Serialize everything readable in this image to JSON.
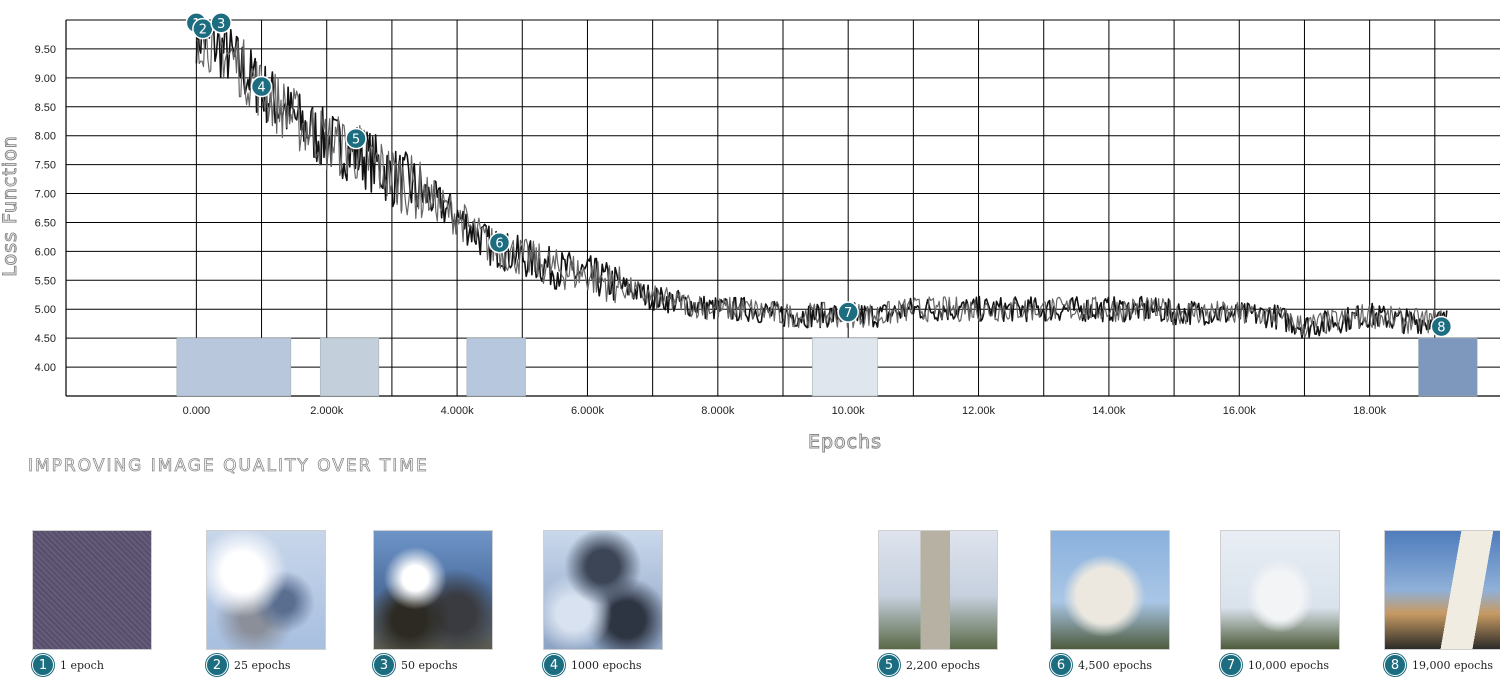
{
  "chart_data": {
    "type": "line",
    "xlabel": "Epochs",
    "ylabel": "Loss Function",
    "xlim": [
      -2000,
      20000
    ],
    "ylim": [
      3.5,
      10.0
    ],
    "y_ticks": [
      4.0,
      4.5,
      5.0,
      5.5,
      6.0,
      6.5,
      7.0,
      7.5,
      8.0,
      8.5,
      9.0,
      9.5
    ],
    "y_tick_labels": [
      "4.00",
      "4.50",
      "5.00",
      "5.50",
      "6.00",
      "6.50",
      "7.00",
      "7.50",
      "8.00",
      "8.50",
      "9.00",
      "9.50"
    ],
    "x_ticks": [
      0,
      2000,
      4000,
      6000,
      8000,
      10000,
      12000,
      14000,
      16000,
      18000
    ],
    "x_tick_labels": [
      "0.000",
      "2.000k",
      "4.000k",
      "6.000k",
      "8.000k",
      "10.00k",
      "12.00k",
      "14.00k",
      "16.00k",
      "18.00k"
    ],
    "grid": true,
    "series": [
      {
        "x": [
          0,
          500,
          1000,
          1500,
          2000,
          2500,
          3000,
          3500,
          4000,
          4500,
          5000,
          5500,
          6000,
          6500,
          7000,
          7500,
          8000,
          8500,
          9000,
          9500,
          10000,
          10500,
          11000,
          11500,
          12000,
          12500,
          13000,
          13500,
          14000,
          14500,
          15000,
          15500,
          16000,
          16500,
          17000,
          17500,
          18000,
          18500,
          19000
        ],
        "y": [
          9.8,
          9.4,
          8.8,
          8.3,
          7.9,
          7.7,
          7.3,
          7.0,
          6.6,
          6.1,
          5.9,
          5.7,
          5.6,
          5.4,
          5.2,
          5.1,
          5.0,
          5.0,
          4.9,
          4.9,
          4.9,
          4.9,
          5.0,
          5.0,
          5.0,
          5.0,
          5.0,
          5.0,
          5.0,
          5.0,
          4.95,
          4.95,
          4.9,
          4.9,
          4.7,
          4.8,
          4.9,
          4.8,
          4.8
        ]
      }
    ],
    "markers": [
      {
        "n": "1",
        "x": 0,
        "y": 9.95
      },
      {
        "n": "2",
        "x": 100,
        "y": 9.85
      },
      {
        "n": "3",
        "x": 380,
        "y": 9.95
      },
      {
        "n": "4",
        "x": 1000,
        "y": 8.85
      },
      {
        "n": "5",
        "x": 2450,
        "y": 7.95
      },
      {
        "n": "6",
        "x": 4650,
        "y": 6.15
      },
      {
        "n": "7",
        "x": 10000,
        "y": 4.95
      },
      {
        "n": "8",
        "x": 19100,
        "y": 4.7
      }
    ]
  },
  "section_title": "IMPROVING IMAGE QUALITY OVER TIME",
  "thumbnails": [
    {
      "n": "1",
      "caption": "1 epoch"
    },
    {
      "n": "2",
      "caption": "25 epochs"
    },
    {
      "n": "3",
      "caption": "50 epochs"
    },
    {
      "n": "4",
      "caption": "1000 epochs"
    },
    {
      "n": "5",
      "caption": "2,200 epochs"
    },
    {
      "n": "6",
      "caption": "4,500 epochs"
    },
    {
      "n": "7",
      "caption": "10,000 epochs"
    },
    {
      "n": "8",
      "caption": "19,000 epochs"
    }
  ],
  "colors": {
    "line": "#3a3a3a",
    "grid": "#000000",
    "badge": "#1d6d80"
  }
}
